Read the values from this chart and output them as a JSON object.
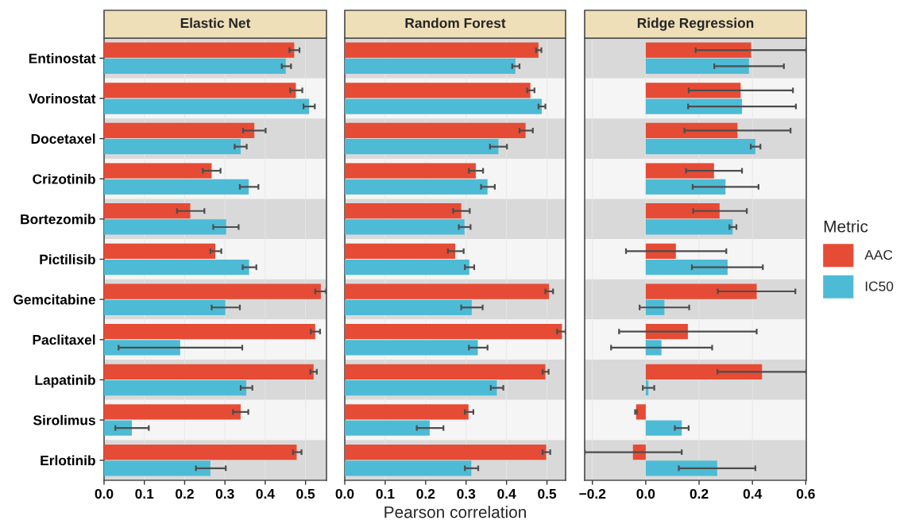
{
  "chart_data": [
    {
      "type": "bar",
      "orientation": "horizontal",
      "title": "Elastic Net",
      "categories": [
        "Entinostat",
        "Vorinostat",
        "Docetaxel",
        "Crizotinib",
        "Bortezomib",
        "Pictilisib",
        "Gemcitabine",
        "Paclitaxel",
        "Lapatinib",
        "Sirolimus",
        "Erlotinib"
      ],
      "series": [
        {
          "color": "#e64b35",
          "values": [
            0.472,
            0.476,
            0.373,
            0.267,
            0.214,
            0.276,
            0.538,
            0.524,
            0.52,
            0.339,
            0.478
          ],
          "errors": [
            [
              0.46,
              0.485
            ],
            [
              0.462,
              0.492
            ],
            [
              0.345,
              0.401
            ],
            [
              0.245,
              0.289
            ],
            [
              0.181,
              0.249
            ],
            [
              0.264,
              0.291
            ],
            [
              0.524,
              0.551
            ],
            [
              0.513,
              0.536
            ],
            [
              0.512,
              0.528
            ],
            [
              0.32,
              0.358
            ],
            [
              0.469,
              0.49
            ]
          ]
        },
        {
          "color": "#4dbbd5",
          "values": [
            0.451,
            0.509,
            0.339,
            0.359,
            0.303,
            0.36,
            0.301,
            0.189,
            0.353,
            0.069,
            0.264
          ],
          "errors": [
            [
              0.441,
              0.464
            ],
            [
              0.495,
              0.523
            ],
            [
              0.324,
              0.354
            ],
            [
              0.337,
              0.383
            ],
            [
              0.271,
              0.334
            ],
            [
              0.344,
              0.378
            ],
            [
              0.267,
              0.337
            ],
            [
              0.036,
              0.343
            ],
            [
              0.339,
              0.368
            ],
            [
              0.028,
              0.111
            ],
            [
              0.228,
              0.302
            ]
          ]
        }
      ],
      "xlim": [
        0,
        0.552
      ],
      "xticks": [
        {
          "value": 0,
          "label": "0.0"
        },
        {
          "value": 0.1,
          "label": "0.1"
        },
        {
          "value": 0.2,
          "label": "0.2"
        },
        {
          "value": 0.3,
          "label": "0.3"
        },
        {
          "value": 0.4,
          "label": "0.4"
        },
        {
          "value": 0.5,
          "label": "0.5"
        }
      ],
      "grid": "x",
      "bands": [
        {
          "axis": "y",
          "from": "Entinostat",
          "to": "Entinostat",
          "color": "#d9d9d9"
        },
        {
          "axis": "y",
          "from": "Vorinostat",
          "to": "Vorinostat",
          "color": "#f5f5f5"
        },
        {
          "axis": "y",
          "from": "Docetaxel",
          "to": "Docetaxel",
          "color": "#d9d9d9"
        },
        {
          "axis": "y",
          "from": "Crizotinib",
          "to": "Crizotinib",
          "color": "#f5f5f5"
        },
        {
          "axis": "y",
          "from": "Bortezomib",
          "to": "Bortezomib",
          "color": "#d9d9d9"
        },
        {
          "axis": "y",
          "from": "Pictilisib",
          "to": "Pictilisib",
          "color": "#f5f5f5"
        },
        {
          "axis": "y",
          "from": "Gemcitabine",
          "to": "Gemcitabine",
          "color": "#d9d9d9"
        },
        {
          "axis": "y",
          "from": "Paclitaxel",
          "to": "Paclitaxel",
          "color": "#f5f5f5"
        },
        {
          "axis": "y",
          "from": "Lapatinib",
          "to": "Lapatinib",
          "color": "#d9d9d9"
        },
        {
          "axis": "y",
          "from": "Sirolimus",
          "to": "Sirolimus",
          "color": "#f5f5f5"
        },
        {
          "axis": "y",
          "from": "Erlotinib",
          "to": "Erlotinib",
          "color": "#d9d9d9"
        }
      ]
    },
    {
      "type": "bar",
      "orientation": "horizontal",
      "title": "Random Forest",
      "xlabel": "Pearson correlation",
      "categories": [
        "Entinostat",
        "Vorinostat",
        "Docetaxel",
        "Crizotinib",
        "Bortezomib",
        "Pictilisib",
        "Gemcitabine",
        "Paclitaxel",
        "Lapatinib",
        "Sirolimus",
        "Erlotinib"
      ],
      "series": [
        {
          "color": "#e64b35",
          "values": [
            0.479,
            0.459,
            0.447,
            0.324,
            0.288,
            0.273,
            0.505,
            0.537,
            0.496,
            0.306,
            0.498
          ],
          "errors": [
            [
              0.473,
              0.486
            ],
            [
              0.451,
              0.469
            ],
            [
              0.432,
              0.465
            ],
            [
              0.307,
              0.342
            ],
            [
              0.268,
              0.309
            ],
            [
              0.255,
              0.294
            ],
            [
              0.496,
              0.515
            ],
            [
              0.525,
              0.546
            ],
            [
              0.489,
              0.504
            ],
            [
              0.297,
              0.318
            ],
            [
              0.489,
              0.508
            ]
          ]
        },
        {
          "color": "#4dbbd5",
          "values": [
            0.422,
            0.487,
            0.38,
            0.353,
            0.296,
            0.308,
            0.314,
            0.329,
            0.376,
            0.21,
            0.313
          ],
          "errors": [
            [
              0.414,
              0.432
            ],
            [
              0.479,
              0.496
            ],
            [
              0.359,
              0.401
            ],
            [
              0.337,
              0.371
            ],
            [
              0.282,
              0.311
            ],
            [
              0.297,
              0.32
            ],
            [
              0.288,
              0.341
            ],
            [
              0.307,
              0.353
            ],
            [
              0.361,
              0.392
            ],
            [
              0.178,
              0.244
            ],
            [
              0.297,
              0.33
            ]
          ]
        }
      ],
      "xlim": [
        0,
        0.546
      ],
      "xticks": [
        {
          "value": 0,
          "label": "0.0"
        },
        {
          "value": 0.1,
          "label": "0.1"
        },
        {
          "value": 0.2,
          "label": "0.2"
        },
        {
          "value": 0.3,
          "label": "0.3"
        },
        {
          "value": 0.4,
          "label": "0.4"
        },
        {
          "value": 0.5,
          "label": "0.5"
        }
      ],
      "grid": "x",
      "tick_labels": "x",
      "bands": [
        {
          "axis": "y",
          "from": "Entinostat",
          "to": "Entinostat",
          "color": "#d9d9d9"
        },
        {
          "axis": "y",
          "from": "Vorinostat",
          "to": "Vorinostat",
          "color": "#f5f5f5"
        },
        {
          "axis": "y",
          "from": "Docetaxel",
          "to": "Docetaxel",
          "color": "#d9d9d9"
        },
        {
          "axis": "y",
          "from": "Crizotinib",
          "to": "Crizotinib",
          "color": "#f5f5f5"
        },
        {
          "axis": "y",
          "from": "Bortezomib",
          "to": "Bortezomib",
          "color": "#d9d9d9"
        },
        {
          "axis": "y",
          "from": "Pictilisib",
          "to": "Pictilisib",
          "color": "#f5f5f5"
        },
        {
          "axis": "y",
          "from": "Gemcitabine",
          "to": "Gemcitabine",
          "color": "#d9d9d9"
        },
        {
          "axis": "y",
          "from": "Paclitaxel",
          "to": "Paclitaxel",
          "color": "#f5f5f5"
        },
        {
          "axis": "y",
          "from": "Lapatinib",
          "to": "Lapatinib",
          "color": "#d9d9d9"
        },
        {
          "axis": "y",
          "from": "Sirolimus",
          "to": "Sirolimus",
          "color": "#f5f5f5"
        },
        {
          "axis": "y",
          "from": "Erlotinib",
          "to": "Erlotinib",
          "color": "#d9d9d9"
        }
      ]
    },
    {
      "type": "bar",
      "orientation": "horizontal",
      "title": "Ridge Regression",
      "legend_title": "Metric",
      "legend": "right",
      "categories": [
        "Entinostat",
        "Vorinostat",
        "Docetaxel",
        "Crizotinib",
        "Bortezomib",
        "Pictilisib",
        "Gemcitabine",
        "Paclitaxel",
        "Lapatinib",
        "Sirolimus",
        "Erlotinib"
      ],
      "series": [
        {
          "name": "AAC",
          "color": "#e64b35",
          "values": [
            0.395,
            0.356,
            0.344,
            0.256,
            0.277,
            0.113,
            0.416,
            0.158,
            0.436,
            -0.036,
            -0.048
          ],
          "errors": [
            [
              0.187,
              0.602
            ],
            [
              0.161,
              0.552
            ],
            [
              0.145,
              0.543
            ],
            [
              0.151,
              0.361
            ],
            [
              0.178,
              0.379
            ],
            [
              -0.074,
              0.302
            ],
            [
              0.27,
              0.561
            ],
            [
              -0.1,
              0.416
            ],
            [
              0.269,
              0.602
            ],
            [
              -0.04,
              -0.033
            ],
            [
              -0.229,
              0.135
            ]
          ]
        },
        {
          "name": "IC50",
          "color": "#4dbbd5",
          "values": [
            0.387,
            0.361,
            0.411,
            0.299,
            0.326,
            0.307,
            0.07,
            0.059,
            0.01,
            0.135,
            0.268
          ],
          "errors": [
            [
              0.257,
              0.518
            ],
            [
              0.159,
              0.563
            ],
            [
              0.394,
              0.43
            ],
            [
              0.176,
              0.423
            ],
            [
              0.314,
              0.34
            ],
            [
              0.173,
              0.439
            ],
            [
              -0.023,
              0.163
            ],
            [
              -0.13,
              0.249
            ],
            [
              -0.011,
              0.032
            ],
            [
              0.109,
              0.161
            ],
            [
              0.124,
              0.411
            ]
          ]
        }
      ],
      "xlim": [
        -0.229,
        0.602
      ],
      "xticks": [
        {
          "value": -0.2,
          "label": "−0.2"
        },
        {
          "value": 0,
          "label": "0.0"
        },
        {
          "value": 0.2,
          "label": "0.2"
        },
        {
          "value": 0.4,
          "label": "0.4"
        },
        {
          "value": 0.6,
          "label": "0.6"
        }
      ],
      "grid": "x",
      "tick_labels": "x",
      "bands": [
        {
          "axis": "y",
          "from": "Entinostat",
          "to": "Entinostat",
          "color": "#d9d9d9"
        },
        {
          "axis": "y",
          "from": "Vorinostat",
          "to": "Vorinostat",
          "color": "#f5f5f5"
        },
        {
          "axis": "y",
          "from": "Docetaxel",
          "to": "Docetaxel",
          "color": "#d9d9d9"
        },
        {
          "axis": "y",
          "from": "Crizotinib",
          "to": "Crizotinib",
          "color": "#f5f5f5"
        },
        {
          "axis": "y",
          "from": "Bortezomib",
          "to": "Bortezomib",
          "color": "#d9d9d9"
        },
        {
          "axis": "y",
          "from": "Pictilisib",
          "to": "Pictilisib",
          "color": "#f5f5f5"
        },
        {
          "axis": "y",
          "from": "Gemcitabine",
          "to": "Gemcitabine",
          "color": "#d9d9d9"
        },
        {
          "axis": "y",
          "from": "Paclitaxel",
          "to": "Paclitaxel",
          "color": "#f5f5f5"
        },
        {
          "axis": "y",
          "from": "Lapatinib",
          "to": "Lapatinib",
          "color": "#d9d9d9"
        },
        {
          "axis": "y",
          "from": "Sirolimus",
          "to": "Sirolimus",
          "color": "#f5f5f5"
        },
        {
          "axis": "y",
          "from": "Erlotinib",
          "to": "Erlotinib",
          "color": "#d9d9d9"
        }
      ]
    }
  ]
}
